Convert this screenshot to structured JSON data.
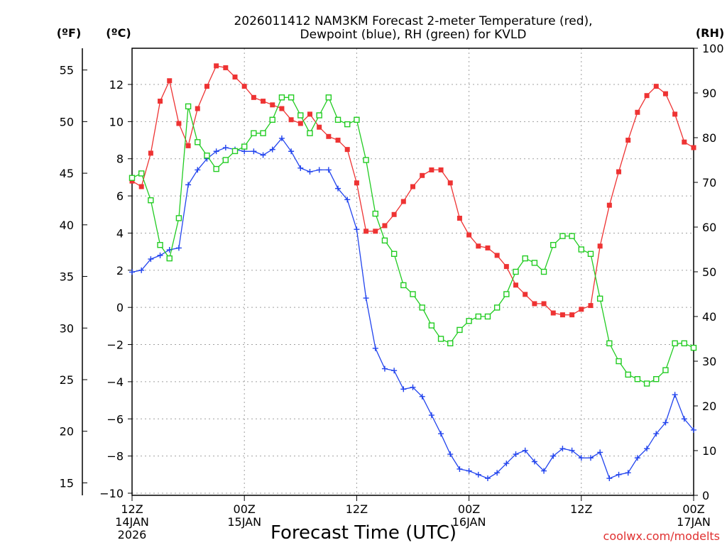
{
  "chart_data": {
    "type": "line",
    "title_line1": "2026011412 NAM3KM Forecast 2-meter Temperature (red),",
    "title_line2": "Dewpoint (blue), RH (green) for KVLD",
    "xlabel": "Forecast Time (UTC)",
    "credit": "coolwx.com/modelts",
    "unit_labels": {
      "fahrenheit": "(ºF)",
      "celsius": "(ºC)",
      "rh": "(RH)"
    },
    "x_unit": "forecast hour",
    "xlim": [
      0,
      60
    ],
    "celsius_lim": [
      -10,
      14
    ],
    "rh_lim": [
      0,
      100
    ],
    "x_ticks": [
      {
        "hour": 0,
        "time": "12Z",
        "date": "14JAN",
        "year": "2026"
      },
      {
        "hour": 12,
        "time": "00Z",
        "date": "15JAN",
        "year": ""
      },
      {
        "hour": 24,
        "time": "12Z",
        "date": "",
        "year": ""
      },
      {
        "hour": 36,
        "time": "00Z",
        "date": "16JAN",
        "year": ""
      },
      {
        "hour": 48,
        "time": "12Z",
        "date": "",
        "year": ""
      },
      {
        "hour": 60,
        "time": "00Z",
        "date": "17JAN",
        "year": ""
      }
    ],
    "celsius_ticks": [
      {
        "value": 12,
        "label": "12"
      },
      {
        "value": 10,
        "label": "10"
      },
      {
        "value": 8,
        "label": "8"
      },
      {
        "value": 6,
        "label": "6"
      },
      {
        "value": 4,
        "label": "4"
      },
      {
        "value": 2,
        "label": "2"
      },
      {
        "value": 0,
        "label": "0"
      },
      {
        "value": -2,
        "label": "−2"
      },
      {
        "value": -4,
        "label": "−4"
      },
      {
        "value": -6,
        "label": "−6"
      },
      {
        "value": -8,
        "label": "−8"
      },
      {
        "value": -10,
        "label": "−10"
      }
    ],
    "fahrenheit_ticks": [
      {
        "value": 55,
        "label": "55"
      },
      {
        "value": 50,
        "label": "50"
      },
      {
        "value": 45,
        "label": "45"
      },
      {
        "value": 40,
        "label": "40"
      },
      {
        "value": 35,
        "label": "35"
      },
      {
        "value": 30,
        "label": "30"
      },
      {
        "value": 25,
        "label": "25"
      },
      {
        "value": 20,
        "label": "20"
      },
      {
        "value": 15,
        "label": "15"
      }
    ],
    "rh_ticks": [
      {
        "value": 100,
        "label": "100"
      },
      {
        "value": 90,
        "label": "90"
      },
      {
        "value": 80,
        "label": "80"
      },
      {
        "value": 70,
        "label": "70"
      },
      {
        "value": 60,
        "label": "60"
      },
      {
        "value": 50,
        "label": "50"
      },
      {
        "value": 40,
        "label": "40"
      },
      {
        "value": 30,
        "label": "30"
      },
      {
        "value": 20,
        "label": "20"
      },
      {
        "value": 10,
        "label": "10"
      },
      {
        "value": 0,
        "label": "0"
      }
    ],
    "series": [
      {
        "name": "2-meter Temperature",
        "axis": "celsius",
        "color": "#ee3333",
        "marker": "filled-square",
        "values": [
          [
            0,
            6.8
          ],
          [
            1,
            6.5
          ],
          [
            2,
            8.3
          ],
          [
            3,
            11.1
          ],
          [
            4,
            12.2
          ],
          [
            5,
            9.9
          ],
          [
            6,
            8.7
          ],
          [
            7,
            10.7
          ],
          [
            8,
            11.9
          ],
          [
            9,
            13.0
          ],
          [
            10,
            12.9
          ],
          [
            11,
            12.4
          ],
          [
            12,
            11.9
          ],
          [
            13,
            11.3
          ],
          [
            14,
            11.1
          ],
          [
            15,
            10.9
          ],
          [
            16,
            10.7
          ],
          [
            17,
            10.1
          ],
          [
            18,
            9.9
          ],
          [
            19,
            10.4
          ],
          [
            20,
            9.7
          ],
          [
            21,
            9.2
          ],
          [
            22,
            9.0
          ],
          [
            23,
            8.5
          ],
          [
            24,
            6.7
          ],
          [
            25,
            4.1
          ],
          [
            26,
            4.1
          ],
          [
            27,
            4.4
          ],
          [
            28,
            5.0
          ],
          [
            29,
            5.7
          ],
          [
            30,
            6.5
          ],
          [
            31,
            7.1
          ],
          [
            32,
            7.4
          ],
          [
            33,
            7.4
          ],
          [
            34,
            6.7
          ],
          [
            35,
            4.8
          ],
          [
            36,
            3.9
          ],
          [
            37,
            3.3
          ],
          [
            38,
            3.2
          ],
          [
            39,
            2.8
          ],
          [
            40,
            2.2
          ],
          [
            41,
            1.2
          ],
          [
            42,
            0.7
          ],
          [
            43,
            0.2
          ],
          [
            44,
            0.2
          ],
          [
            45,
            -0.3
          ],
          [
            46,
            -0.4
          ],
          [
            47,
            -0.4
          ],
          [
            48,
            -0.1
          ],
          [
            49,
            0.1
          ],
          [
            50,
            3.3
          ],
          [
            51,
            5.5
          ],
          [
            52,
            7.3
          ],
          [
            53,
            9.0
          ],
          [
            54,
            10.5
          ],
          [
            55,
            11.4
          ],
          [
            56,
            11.9
          ],
          [
            57,
            11.5
          ],
          [
            58,
            10.4
          ],
          [
            59,
            8.9
          ],
          [
            60,
            8.6
          ]
        ]
      },
      {
        "name": "Dewpoint",
        "axis": "celsius",
        "color": "#2244ee",
        "marker": "plus",
        "values": [
          [
            0,
            1.9
          ],
          [
            1,
            2.0
          ],
          [
            2,
            2.6
          ],
          [
            3,
            2.8
          ],
          [
            4,
            3.1
          ],
          [
            5,
            3.2
          ],
          [
            6,
            6.6
          ],
          [
            7,
            7.4
          ],
          [
            8,
            8.0
          ],
          [
            9,
            8.4
          ],
          [
            10,
            8.6
          ],
          [
            11,
            8.5
          ],
          [
            12,
            8.4
          ],
          [
            13,
            8.4
          ],
          [
            14,
            8.2
          ],
          [
            15,
            8.5
          ],
          [
            16,
            9.1
          ],
          [
            17,
            8.4
          ],
          [
            18,
            7.5
          ],
          [
            19,
            7.3
          ],
          [
            20,
            7.4
          ],
          [
            21,
            7.4
          ],
          [
            22,
            6.4
          ],
          [
            23,
            5.8
          ],
          [
            24,
            4.2
          ],
          [
            25,
            0.5
          ],
          [
            26,
            -2.2
          ],
          [
            27,
            -3.3
          ],
          [
            28,
            -3.4
          ],
          [
            29,
            -4.4
          ],
          [
            30,
            -4.3
          ],
          [
            31,
            -4.8
          ],
          [
            32,
            -5.8
          ],
          [
            33,
            -6.8
          ],
          [
            34,
            -7.9
          ],
          [
            35,
            -8.7
          ],
          [
            36,
            -8.8
          ],
          [
            37,
            -9.0
          ],
          [
            38,
            -9.2
          ],
          [
            39,
            -8.9
          ],
          [
            40,
            -8.4
          ],
          [
            41,
            -7.9
          ],
          [
            42,
            -7.7
          ],
          [
            43,
            -8.3
          ],
          [
            44,
            -8.8
          ],
          [
            45,
            -8.0
          ],
          [
            46,
            -7.6
          ],
          [
            47,
            -7.7
          ],
          [
            48,
            -8.1
          ],
          [
            49,
            -8.1
          ],
          [
            50,
            -7.8
          ],
          [
            51,
            -9.2
          ],
          [
            52,
            -9.0
          ],
          [
            53,
            -8.9
          ],
          [
            54,
            -8.1
          ],
          [
            55,
            -7.6
          ],
          [
            56,
            -6.8
          ],
          [
            57,
            -6.2
          ],
          [
            58,
            -4.7
          ],
          [
            59,
            -6.0
          ],
          [
            60,
            -6.6
          ]
        ]
      },
      {
        "name": "RH",
        "axis": "rh",
        "color": "#22cc22",
        "marker": "open-square",
        "values": [
          [
            0,
            71
          ],
          [
            1,
            72
          ],
          [
            2,
            66
          ],
          [
            3,
            56
          ],
          [
            4,
            53
          ],
          [
            5,
            62
          ],
          [
            6,
            87
          ],
          [
            7,
            79
          ],
          [
            8,
            76
          ],
          [
            9,
            73
          ],
          [
            10,
            75
          ],
          [
            11,
            77
          ],
          [
            12,
            78
          ],
          [
            13,
            81
          ],
          [
            14,
            81
          ],
          [
            15,
            84
          ],
          [
            16,
            89
          ],
          [
            17,
            89
          ],
          [
            18,
            85
          ],
          [
            19,
            81
          ],
          [
            20,
            85
          ],
          [
            21,
            89
          ],
          [
            22,
            84
          ],
          [
            23,
            83
          ],
          [
            24,
            84
          ],
          [
            25,
            75
          ],
          [
            26,
            63
          ],
          [
            27,
            57
          ],
          [
            28,
            54
          ],
          [
            29,
            47
          ],
          [
            30,
            45
          ],
          [
            31,
            42
          ],
          [
            32,
            38
          ],
          [
            33,
            35
          ],
          [
            34,
            34
          ],
          [
            35,
            37
          ],
          [
            36,
            39
          ],
          [
            37,
            40
          ],
          [
            38,
            40
          ],
          [
            39,
            42
          ],
          [
            40,
            45
          ],
          [
            41,
            50
          ],
          [
            42,
            53
          ],
          [
            43,
            52
          ],
          [
            44,
            50
          ],
          [
            45,
            56
          ],
          [
            46,
            58
          ],
          [
            47,
            58
          ],
          [
            48,
            55
          ],
          [
            49,
            54
          ],
          [
            50,
            44
          ],
          [
            51,
            34
          ],
          [
            52,
            30
          ],
          [
            53,
            27
          ],
          [
            54,
            26
          ],
          [
            55,
            25
          ],
          [
            56,
            26
          ],
          [
            57,
            28
          ],
          [
            58,
            34
          ],
          [
            59,
            34
          ],
          [
            60,
            33
          ]
        ]
      }
    ]
  }
}
